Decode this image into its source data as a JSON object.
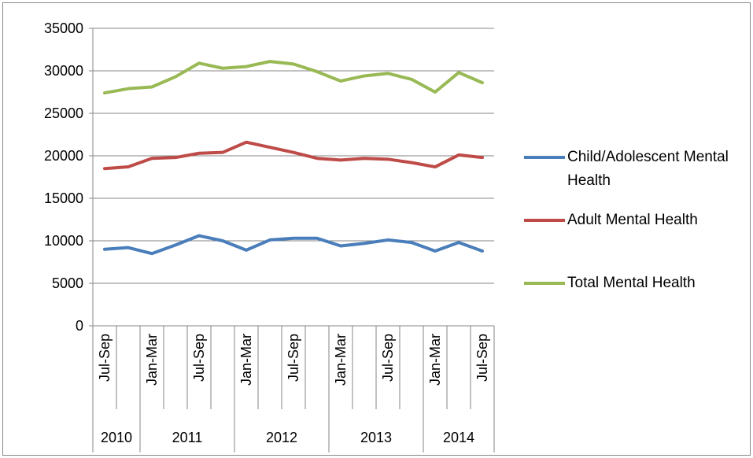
{
  "chart_data": {
    "type": "line",
    "categories": [
      "Jul-Sep",
      null,
      "Jan-Mar",
      null,
      "Jul-Sep",
      null,
      "Jan-Mar",
      null,
      "Jul-Sep",
      null,
      "Jan-Mar",
      null,
      "Jul-Sep",
      null,
      "Jan-Mar",
      null,
      "Jul-Sep"
    ],
    "x_groups": [
      {
        "label": "2010",
        "count": 2
      },
      {
        "label": "2011",
        "count": 4
      },
      {
        "label": "2012",
        "count": 4
      },
      {
        "label": "2013",
        "count": 4
      },
      {
        "label": "2014",
        "count": 3
      }
    ],
    "series": [
      {
        "name": "Child/Adolescent Mental Health",
        "color": "#4a7ebb",
        "values": [
          9000,
          9200,
          8500,
          9500,
          10600,
          10000,
          8900,
          10100,
          10300,
          10300,
          9400,
          9700,
          10100,
          9800,
          8800,
          9800,
          8800
        ]
      },
      {
        "name": "Adult Mental Health",
        "color": "#be4b48",
        "values": [
          18500,
          18700,
          19700,
          19800,
          20300,
          20400,
          21600,
          21000,
          20400,
          19700,
          19500,
          19700,
          19600,
          19200,
          18700,
          20100,
          19800
        ]
      },
      {
        "name": "Total Mental Health",
        "color": "#98b954",
        "values": [
          27400,
          27900,
          28100,
          29300,
          30900,
          30300,
          30500,
          31100,
          30800,
          29900,
          28800,
          29400,
          29700,
          29000,
          27500,
          29800,
          28600
        ]
      }
    ],
    "ylim": [
      0,
      35000
    ],
    "yticks": [
      0,
      5000,
      10000,
      15000,
      20000,
      25000,
      30000,
      35000
    ],
    "grid": true,
    "legend": "right"
  }
}
